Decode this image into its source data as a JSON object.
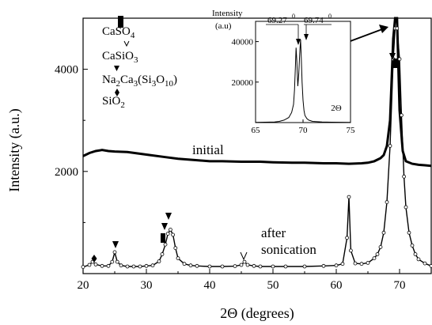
{
  "chart_data": [
    {
      "type": "line",
      "xlabel": "2Θ (degrees)",
      "ylabel": "Intensity (a.u.)",
      "xlim": [
        20,
        75
      ],
      "ylim": [
        0,
        5000
      ],
      "xticks": [
        "20",
        "30",
        "40",
        "50",
        "60",
        "70"
      ],
      "yticks": [
        "2000",
        "4000"
      ],
      "xtick_values": [
        20,
        30,
        40,
        50,
        60,
        70
      ],
      "ytick_values": [
        2000,
        4000
      ],
      "annotations": [
        "initial",
        "after",
        "sonication"
      ],
      "legend": {
        "placement": "top-left",
        "entries": [
          {
            "marker": "filled-rectangle",
            "parts": [
              {
                "t": "CaSO",
                "sub": false
              },
              {
                "t": "4",
                "sub": true
              }
            ]
          },
          {
            "marker": "open-triangle",
            "parts": [
              {
                "t": "CaSiO",
                "sub": false
              },
              {
                "t": "3",
                "sub": true
              }
            ]
          },
          {
            "marker": "filled-triangle",
            "parts": [
              {
                "t": "Na",
                "sub": false
              },
              {
                "t": "2",
                "sub": true
              },
              {
                "t": "Ca",
                "sub": false
              },
              {
                "t": "3",
                "sub": true
              },
              {
                "t": "(Si",
                "sub": false
              },
              {
                "t": "3",
                "sub": true
              },
              {
                "t": "O",
                "sub": false
              },
              {
                "t": "10",
                "sub": true
              },
              {
                "t": ")",
                "sub": false
              }
            ]
          },
          {
            "marker": "filled-diamond",
            "parts": [
              {
                "t": "SiO",
                "sub": false
              },
              {
                "t": "2",
                "sub": true
              }
            ]
          }
        ]
      },
      "series": [
        {
          "x": [
            20,
            21,
            22,
            23,
            24,
            25,
            27,
            30,
            33,
            35,
            38,
            40,
            42,
            45,
            48,
            50,
            53,
            55,
            58,
            60,
            62,
            64,
            65,
            66,
            67,
            67.5,
            68,
            68.5,
            69,
            69.3,
            69.6,
            70,
            70.5,
            71,
            72,
            73,
            74,
            75
          ],
          "y": [
            2300,
            2360,
            2400,
            2420,
            2400,
            2390,
            2380,
            2330,
            2280,
            2250,
            2220,
            2200,
            2200,
            2190,
            2190,
            2180,
            2170,
            2170,
            2160,
            2160,
            2150,
            2160,
            2170,
            2200,
            2260,
            2320,
            2500,
            3000,
            4600,
            5000,
            5000,
            3200,
            2400,
            2200,
            2150,
            2130,
            2120,
            2110
          ]
        },
        {
          "x": [
            20,
            21,
            21.5,
            22,
            23,
            24,
            24.6,
            25,
            25.4,
            26,
            27,
            28,
            29,
            30,
            31,
            32,
            32.5,
            33,
            33.4,
            33.8,
            34.2,
            34.6,
            35,
            36,
            37,
            38,
            40,
            42,
            44,
            45,
            45.5,
            46,
            47,
            48,
            50,
            52,
            55,
            58,
            60,
            61,
            61.7,
            62,
            62.3,
            63,
            64,
            65,
            66,
            66.5,
            67,
            67.5,
            68,
            68.5,
            69,
            69.3,
            69.6,
            70,
            70.3,
            70.7,
            71,
            71.5,
            72,
            72.5,
            73,
            74,
            75
          ],
          "y": [
            130,
            170,
            230,
            180,
            150,
            150,
            230,
            420,
            230,
            160,
            140,
            140,
            140,
            150,
            160,
            240,
            380,
            570,
            780,
            860,
            760,
            500,
            300,
            190,
            160,
            150,
            140,
            140,
            145,
            170,
            230,
            170,
            150,
            140,
            140,
            140,
            140,
            150,
            160,
            190,
            700,
            1500,
            450,
            200,
            190,
            210,
            300,
            380,
            520,
            800,
            1400,
            2500,
            4200,
            4800,
            4800,
            4200,
            3100,
            1900,
            1300,
            800,
            550,
            380,
            280,
            200,
            150
          ]
        }
      ]
    },
    {
      "type": "line",
      "xlabel": "2Θ",
      "ylabel": "Intensity (a.u)",
      "xlim": [
        65,
        75
      ],
      "ylim": [
        0,
        50000
      ],
      "xticks": [
        "65",
        "70",
        "75"
      ],
      "yticks": [
        "20000",
        "40000"
      ],
      "xtick_values": [
        65,
        70,
        75
      ],
      "ytick_values": [
        20000,
        40000
      ],
      "annotations": [
        "69.27",
        "69.74"
      ],
      "degree_symbol": "0",
      "series": [
        {
          "x": [
            65,
            66,
            67,
            67.5,
            68,
            68.5,
            68.8,
            69,
            69.1,
            69.2,
            69.27,
            69.35,
            69.45,
            69.55,
            69.65,
            69.74,
            69.82,
            69.9,
            70,
            70.1,
            70.2,
            70.4,
            70.6,
            71,
            72,
            73,
            75
          ],
          "y": [
            100,
            200,
            300,
            600,
            1200,
            2500,
            5000,
            9000,
            16000,
            28000,
            37000,
            30000,
            18000,
            24000,
            34000,
            41000,
            32000,
            20000,
            11000,
            6000,
            3500,
            2000,
            1200,
            600,
            300,
            200,
            100
          ]
        }
      ]
    }
  ]
}
